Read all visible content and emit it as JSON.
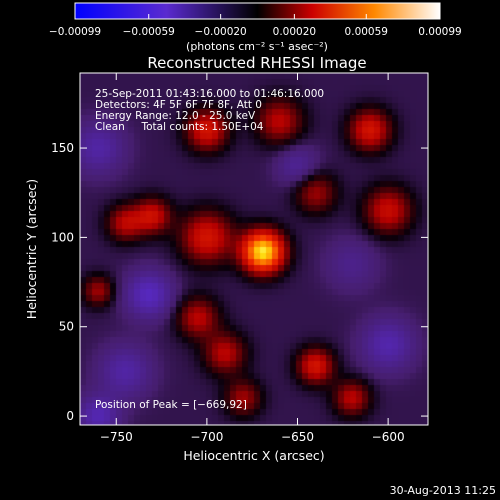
{
  "chart_data": {
    "type": "heatmap",
    "title": "Reconstructed RHESSI Image",
    "xlabel": "Heliocentric X (arcsec)",
    "ylabel": "Heliocentric Y (arcsec)",
    "xlim": [
      -770,
      -578
    ],
    "ylim": [
      -5,
      192
    ],
    "x_ticks": [
      -750,
      -700,
      -650,
      -600
    ],
    "x_tick_labels": [
      "−750",
      "−700",
      "−650",
      "−600"
    ],
    "y_ticks": [
      0,
      50,
      100,
      150
    ],
    "y_tick_labels": [
      "0",
      "50",
      "100",
      "150"
    ],
    "colorbar": {
      "range": [
        -0.00099,
        0.00099
      ],
      "ticks": [
        -0.00099,
        -0.00059,
        -0.0002,
        0.0002,
        0.00059,
        0.00099
      ],
      "tick_labels": [
        "−0.00099",
        "−0.00059",
        "−0.00020",
        "0.00020",
        "0.00059",
        "0.00099"
      ],
      "unit_label": "(photons cm⁻² s⁻¹ asec⁻²)",
      "colormap": [
        "#0000ff",
        "#5a2ad0",
        "#000000",
        "#cc0000",
        "#ff8800",
        "#ffffff"
      ]
    },
    "annotations": [
      "25-Sep-2011 01:43:16.000 to 01:46:16.000",
      "Detectors: 4F 5F 6F 7F 8F, Att 0",
      "Energy Range: 12.0 - 25.0 keV",
      "Clean     Total counts: 1.50E+04"
    ],
    "peak_label": "Position of Peak = [−669,92]",
    "peak": {
      "x": -669,
      "y": 92
    },
    "sources": [
      {
        "x": -669,
        "y": 92,
        "amp": 1.0,
        "sigma": 8
      },
      {
        "x": -700,
        "y": 100,
        "amp": 0.45,
        "sigma": 10
      },
      {
        "x": -730,
        "y": 112,
        "amp": 0.4,
        "sigma": 7
      },
      {
        "x": -745,
        "y": 108,
        "amp": 0.35,
        "sigma": 7
      },
      {
        "x": -700,
        "y": 160,
        "amp": 0.45,
        "sigma": 8
      },
      {
        "x": -660,
        "y": 165,
        "amp": 0.35,
        "sigma": 9
      },
      {
        "x": -610,
        "y": 160,
        "amp": 0.45,
        "sigma": 8
      },
      {
        "x": -600,
        "y": 115,
        "amp": 0.4,
        "sigma": 9
      },
      {
        "x": -640,
        "y": 125,
        "amp": 0.3,
        "sigma": 8
      },
      {
        "x": -705,
        "y": 55,
        "amp": 0.35,
        "sigma": 8
      },
      {
        "x": -690,
        "y": 35,
        "amp": 0.35,
        "sigma": 8
      },
      {
        "x": -640,
        "y": 28,
        "amp": 0.45,
        "sigma": 7
      },
      {
        "x": -620,
        "y": 10,
        "amp": 0.35,
        "sigma": 7
      },
      {
        "x": -760,
        "y": 70,
        "amp": 0.3,
        "sigma": 6
      },
      {
        "x": -680,
        "y": 10,
        "amp": 0.3,
        "sigma": 7
      },
      {
        "x": -732,
        "y": 68,
        "amp": -0.35,
        "sigma": 9
      },
      {
        "x": -760,
        "y": 150,
        "amp": -0.25,
        "sigma": 10
      },
      {
        "x": -600,
        "y": 40,
        "amp": -0.28,
        "sigma": 10
      },
      {
        "x": -745,
        "y": 25,
        "amp": -0.25,
        "sigma": 10
      },
      {
        "x": -650,
        "y": 140,
        "amp": -0.2,
        "sigma": 8
      },
      {
        "x": -620,
        "y": 85,
        "amp": -0.15,
        "sigma": 10
      },
      {
        "x": -760,
        "y": 0,
        "amp": -0.3,
        "sigma": 8
      }
    ]
  },
  "footer": {
    "timestamp": "30-Aug-2013 11:25"
  }
}
